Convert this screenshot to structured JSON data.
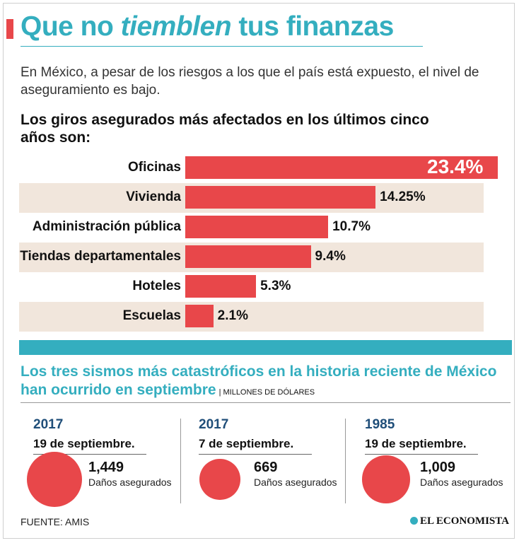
{
  "header": {
    "title_part1": "Que no ",
    "title_emph": "tiemblen",
    "title_part2": " tus finanzas",
    "intro": "En México, a pesar de los riesgos a los que el país está expuesto, el nivel de aseguramiento es bajo."
  },
  "colors": {
    "accent": "#34aebf",
    "bar": "#e8474a",
    "band": "#f1e6dc",
    "year": "#1f4e79"
  },
  "chart_data": {
    "type": "bar",
    "orientation": "horizontal",
    "title": "Los giros asegurados más afectados en los últimos cinco años son:",
    "categories": [
      "Oficinas",
      "Vivienda",
      "Administración pública",
      "Tiendas departamentales",
      "Hoteles",
      "Escuelas"
    ],
    "values": [
      23.4,
      14.25,
      10.7,
      9.4,
      5.3,
      2.1
    ],
    "value_labels": [
      "23.4%",
      "14.25%",
      "10.7%",
      "9.4%",
      "5.3%",
      "2.1%"
    ],
    "xlabel": "",
    "ylabel": "",
    "xlim": [
      0,
      23.4
    ],
    "grid": false,
    "legend": "none"
  },
  "sismos": {
    "title": "Los tres sismos más catastróficos en la historia reciente de México han ocurrido en septiembre",
    "units": "| MILLONES DE DÓLARES",
    "items": [
      {
        "year": "2017",
        "date": "19 de septiembre.",
        "value": 1449,
        "value_label": "1,449",
        "caption": "Daños asegurados"
      },
      {
        "year": "2017",
        "date": "7 de septiembre.",
        "value": 669,
        "value_label": "669",
        "caption": "Daños asegurados"
      },
      {
        "year": "1985",
        "date": "19 de septiembre.",
        "value": 1009,
        "value_label": "1,009",
        "caption": "Daños asegurados"
      }
    ]
  },
  "footer": {
    "source": "FUENTE: AMIS",
    "brand": "EL ECONOMISTA"
  }
}
